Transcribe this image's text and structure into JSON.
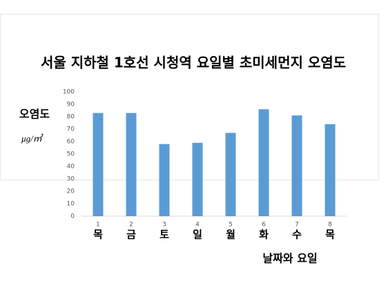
{
  "chart_data": {
    "type": "bar",
    "title": "서울 지하철 1호선 시청역 요일별 초미세먼지 오염도",
    "y_label": "오염도",
    "y_unit": "μg/㎥",
    "x_label": "날짜와 요일",
    "categories": [
      "1",
      "2",
      "3",
      "4",
      "5",
      "6",
      "7",
      "8"
    ],
    "day_labels": [
      "목",
      "금",
      "토",
      "일",
      "월",
      "화",
      "수",
      "목"
    ],
    "values": [
      83,
      83,
      58,
      59,
      67,
      86,
      81,
      74
    ],
    "color": "#5b9bd5",
    "ylim": [
      0,
      100
    ],
    "yticks": [
      0,
      10,
      20,
      30,
      40,
      50,
      60,
      70,
      80,
      90,
      100
    ],
    "grid": false
  }
}
